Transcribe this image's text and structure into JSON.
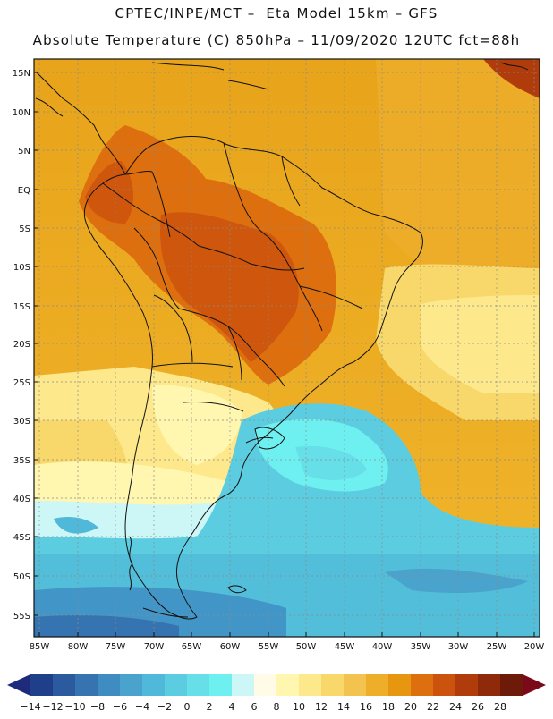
{
  "header": {
    "line1": "CPTEC/INPE/MCT –  Eta Model 15km – GFS",
    "line2": "Absolute Temperature (C) 850hPa – 11/09/2020 12UTC fct=88h"
  },
  "map": {
    "lat_labels": [
      "15N",
      "10N",
      "5N",
      "EQ",
      "5S",
      "10S",
      "15S",
      "20S",
      "25S",
      "30S",
      "35S",
      "40S",
      "45S",
      "50S",
      "55S"
    ],
    "lon_labels": [
      "85W",
      "80W",
      "75W",
      "70W",
      "65W",
      "60W",
      "55W",
      "50W",
      "45W",
      "40W",
      "35W",
      "30W",
      "25W",
      "20W"
    ]
  },
  "colorbar": {
    "labels": [
      "-14",
      "-12",
      "-10",
      "-8",
      "-6",
      "-4",
      "-2",
      "0",
      "2",
      "4",
      "6",
      "8",
      "10",
      "12",
      "14",
      "16",
      "18",
      "20",
      "22",
      "24",
      "26",
      "28"
    ],
    "colors": [
      "#1f3f8a",
      "#2b5a9e",
      "#3574b0",
      "#3f8cc2",
      "#4aa3cc",
      "#50b8d8",
      "#5ccde0",
      "#66dfe8",
      "#6ff0f0",
      "#cdf6f6",
      "#fffbe6",
      "#fff6b0",
      "#fde98c",
      "#f8d86a",
      "#f2c34f",
      "#eeae2a",
      "#e7960f",
      "#de6f0e",
      "#cc530d",
      "#b03c0c",
      "#8e2a0a",
      "#6e1a08"
    ],
    "under_color": "#1f2a7a",
    "over_color": "#7a0a1a"
  }
}
